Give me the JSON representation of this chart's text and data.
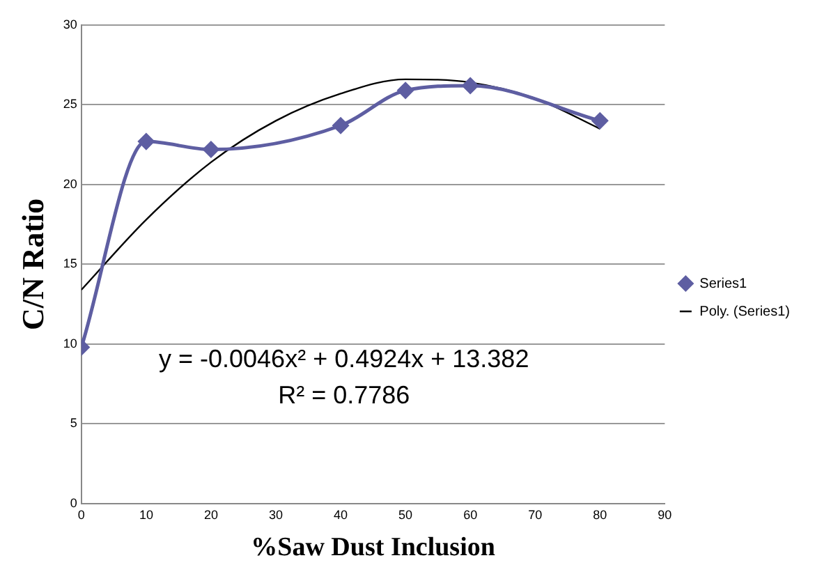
{
  "chart_data": {
    "type": "line",
    "xlabel": "%Saw Dust Inclusion",
    "ylabel": "C/N Ratio",
    "xlim": [
      0,
      90
    ],
    "xticks": [
      0,
      10,
      20,
      30,
      40,
      50,
      60,
      70,
      80,
      90
    ],
    "ylim": [
      0,
      30
    ],
    "yticks": [
      0,
      5,
      10,
      15,
      20,
      25,
      30
    ],
    "grid": "y",
    "legend": "right",
    "series": [
      {
        "name": "Series1",
        "color": "#5e5ea2",
        "marker": "diamond",
        "x": [
          0,
          10,
          20,
          40,
          50,
          60,
          80
        ],
        "values": [
          9.8,
          22.7,
          22.2,
          23.7,
          25.9,
          26.2,
          24.0
        ]
      },
      {
        "name": "Poly. (Series1)",
        "color": "#000000",
        "marker": "none",
        "x": [
          0,
          10,
          20,
          30,
          40,
          50,
          60,
          70,
          80
        ],
        "values": [
          13.4,
          17.8,
          21.4,
          24.0,
          25.7,
          26.6,
          26.4,
          25.4,
          23.5
        ]
      }
    ],
    "annotations": [
      "y = -0.0046x² + 0.4924x + 13.382",
      "R² = 0.7786"
    ]
  }
}
